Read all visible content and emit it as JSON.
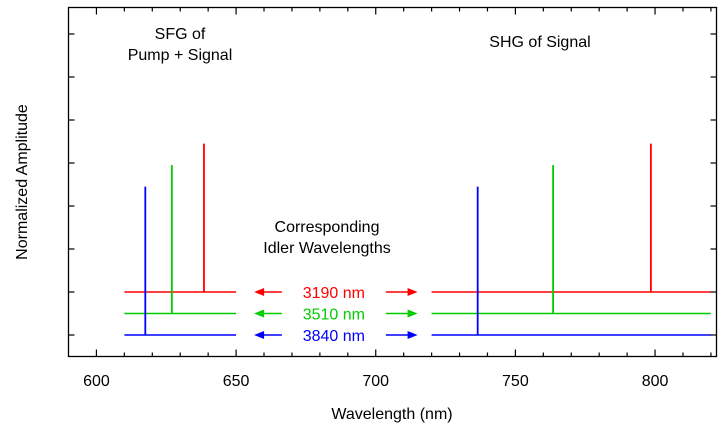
{
  "chart_data": {
    "type": "line",
    "xlabel": "Wavelength (nm)",
    "ylabel": "Normalized Amplitude",
    "xlim": [
      590,
      822
    ],
    "x_ticks": [
      600,
      650,
      700,
      750,
      800
    ],
    "grid": false,
    "legend": "none",
    "annotations": {
      "sfg": [
        "SFG of",
        "Pump + Signal"
      ],
      "shg": "SHG of Signal",
      "idler_heading": [
        "Corresponding",
        "Idler Wavelengths"
      ]
    },
    "series": [
      {
        "label": "3190 nm",
        "color": "#ff0000",
        "baseline": 0.2,
        "x_range": [
          610,
          820
        ],
        "peaks": [
          {
            "x": 638.5,
            "amplitude": 0.69
          },
          {
            "x": 798.5,
            "amplitude": 0.69
          }
        ]
      },
      {
        "label": "3510 nm",
        "color": "#00cc00",
        "baseline": 0.1,
        "x_range": [
          610,
          820
        ],
        "peaks": [
          {
            "x": 627,
            "amplitude": 0.69
          },
          {
            "x": 763.5,
            "amplitude": 0.69
          }
        ]
      },
      {
        "label": "3840 nm",
        "color": "#0000ff",
        "baseline": 0.0,
        "x_range": [
          610,
          820
        ],
        "peaks": [
          {
            "x": 617.5,
            "amplitude": 0.69
          },
          {
            "x": 736.5,
            "amplitude": 0.69
          }
        ]
      }
    ]
  }
}
